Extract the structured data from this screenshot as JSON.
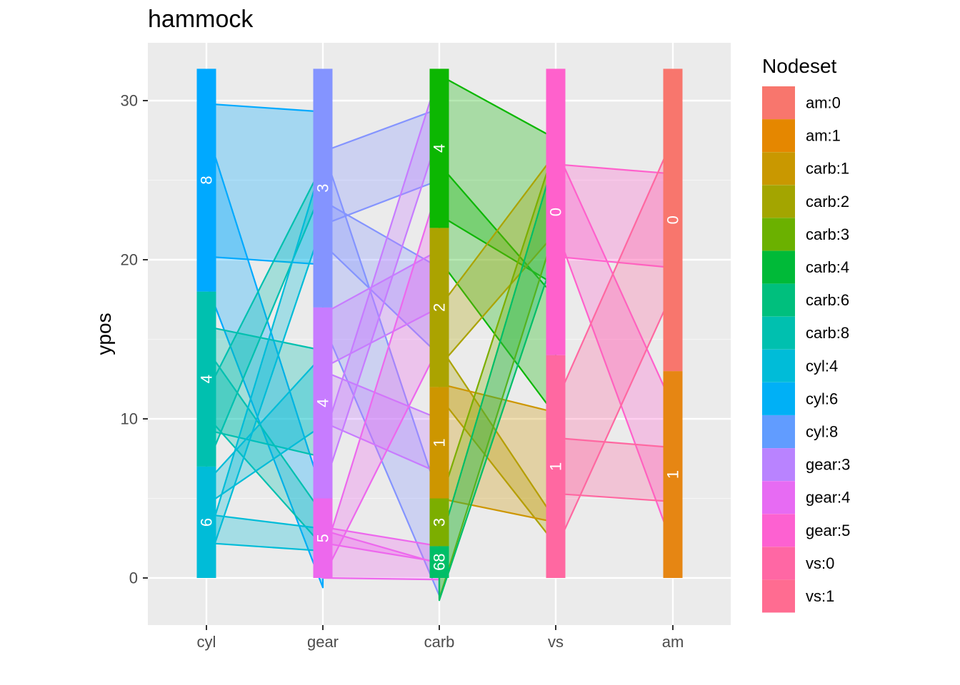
{
  "chart_data": {
    "type": "hammock",
    "title": "hammock",
    "xlabel": "",
    "ylabel": "ypos",
    "x_categories": [
      "cyl",
      "gear",
      "carb",
      "vs",
      "am"
    ],
    "ylim": [
      -3,
      33.5
    ],
    "y_ticks": [
      0,
      10,
      20,
      30
    ],
    "legend": {
      "title": "Nodeset",
      "placement": "right",
      "items": [
        {
          "label": "am:0",
          "color": "#F8766D"
        },
        {
          "label": "am:1",
          "color": "#E58700"
        },
        {
          "label": "carb:1",
          "color": "#C99800"
        },
        {
          "label": "carb:2",
          "color": "#A3A500"
        },
        {
          "label": "carb:3",
          "color": "#6BB100"
        },
        {
          "label": "carb:4",
          "color": "#00BA38"
        },
        {
          "label": "carb:6",
          "color": "#00BF7D"
        },
        {
          "label": "carb:8",
          "color": "#00C0AF"
        },
        {
          "label": "cyl:4",
          "color": "#00BCD8"
        },
        {
          "label": "cyl:6",
          "color": "#00B0F6"
        },
        {
          "label": "cyl:8",
          "color": "#619CFF"
        },
        {
          "label": "gear:3",
          "color": "#B983FF"
        },
        {
          "label": "gear:4",
          "color": "#E76BF3"
        },
        {
          "label": "gear:5",
          "color": "#FD61D1"
        },
        {
          "label": "vs:0",
          "color": "#FF67A4"
        },
        {
          "label": "vs:1",
          "color": "#FF6C91"
        }
      ]
    },
    "nodes": [
      {
        "axis": "cyl",
        "label": "6",
        "count": 7,
        "color": "#00BCD8"
      },
      {
        "axis": "cyl",
        "label": "4",
        "count": 11,
        "color": "#00C0AF"
      },
      {
        "axis": "cyl",
        "label": "8",
        "count": 14,
        "color": "#00A9FF"
      },
      {
        "axis": "gear",
        "label": "5",
        "count": 5,
        "color": "#ED68ED"
      },
      {
        "axis": "gear",
        "label": "4",
        "count": 12,
        "color": "#C77CFF"
      },
      {
        "axis": "gear",
        "label": "3",
        "count": 15,
        "color": "#8494FF"
      },
      {
        "axis": "carb",
        "label": "68",
        "count": 2,
        "color": "#00BE67"
      },
      {
        "axis": "carb",
        "label": "3",
        "count": 3,
        "color": "#7CAE00"
      },
      {
        "axis": "carb",
        "label": "1",
        "count": 7,
        "color": "#CD9600"
      },
      {
        "axis": "carb",
        "label": "2",
        "count": 10,
        "color": "#ABA300"
      },
      {
        "axis": "carb",
        "label": "4",
        "count": 10,
        "color": "#0CB702"
      },
      {
        "axis": "vs",
        "label": "1",
        "count": 14,
        "color": "#FF68A1"
      },
      {
        "axis": "vs",
        "label": "0",
        "count": 18,
        "color": "#FF61CC"
      },
      {
        "axis": "am",
        "label": "1",
        "count": 13,
        "color": "#E68613"
      },
      {
        "axis": "am",
        "label": "0",
        "count": 19,
        "color": "#F8766D"
      }
    ],
    "ribbons": [
      {
        "from": "cyl",
        "to": "gear",
        "color": "#00A9FF",
        "y1": [
          20.2,
          29.8
        ],
        "y2": [
          19.7,
          29.3
        ]
      },
      {
        "from": "cyl",
        "to": "gear",
        "color": "#00A9FF",
        "y1": [
          18.5,
          28.2
        ],
        "y2": [
          -0.6,
          5.2
        ]
      },
      {
        "from": "cyl",
        "to": "gear",
        "color": "#00C0AF",
        "y1": [
          9.3,
          15.8
        ],
        "y2": [
          7.6,
          14.3
        ]
      },
      {
        "from": "cyl",
        "to": "gear",
        "color": "#00C0AF",
        "y1": [
          10.2,
          14.4
        ],
        "y2": [
          2.0,
          4.0
        ]
      },
      {
        "from": "cyl",
        "to": "gear",
        "color": "#00C0AF",
        "y1": [
          7.0,
          11.6
        ],
        "y2": [
          24.5,
          26.0
        ]
      },
      {
        "from": "cyl",
        "to": "gear",
        "color": "#00BCD8",
        "y1": [
          2.2,
          4.0
        ],
        "y2": [
          1.7,
          3.1
        ]
      },
      {
        "from": "cyl",
        "to": "gear",
        "color": "#00BCD8",
        "y1": [
          4.6,
          6.0
        ],
        "y2": [
          9.6,
          14.0
        ]
      },
      {
        "from": "cyl",
        "to": "gear",
        "color": "#00BCD8",
        "y1": [
          0.6,
          2.1
        ],
        "y2": [
          22.3,
          26.2
        ]
      },
      {
        "from": "gear",
        "to": "carb",
        "color": "#8494FF",
        "y1": [
          22.2,
          26.8
        ],
        "y2": [
          25.0,
          29.5
        ]
      },
      {
        "from": "gear",
        "to": "carb",
        "color": "#8494FF",
        "y1": [
          16.0,
          27.0
        ],
        "y2": [
          -1.1,
          5.0
        ]
      },
      {
        "from": "gear",
        "to": "carb",
        "color": "#8494FF",
        "y1": [
          21.0,
          23.7
        ],
        "y2": [
          14.0,
          19.5
        ]
      },
      {
        "from": "gear",
        "to": "carb",
        "color": "#C77CFF",
        "y1": [
          9.8,
          13.0
        ],
        "y2": [
          6.6,
          10.0
        ]
      },
      {
        "from": "gear",
        "to": "carb",
        "color": "#C77CFF",
        "y1": [
          5.5,
          8.6
        ],
        "y2": [
          28.0,
          31.8
        ]
      },
      {
        "from": "gear",
        "to": "carb",
        "color": "#C77CFF",
        "y1": [
          13.2,
          16.6
        ],
        "y2": [
          17.0,
          20.6
        ]
      },
      {
        "from": "gear",
        "to": "carb",
        "color": "#ED68ED",
        "y1": [
          2.2,
          3.2
        ],
        "y2": [
          1.0,
          2.0
        ]
      },
      {
        "from": "gear",
        "to": "carb",
        "color": "#ED68ED",
        "y1": [
          0.0,
          3.0
        ],
        "y2": [
          -0.1,
          0.9
        ]
      },
      {
        "from": "gear",
        "to": "carb",
        "color": "#ED68ED",
        "y1": [
          0.0,
          1.2
        ],
        "y2": [
          14.6,
          24.8
        ]
      },
      {
        "from": "carb",
        "to": "vs",
        "color": "#0CB702",
        "y1": [
          22.8,
          31.6
        ],
        "y2": [
          18.4,
          27.6
        ]
      },
      {
        "from": "carb",
        "to": "vs",
        "color": "#0CB702",
        "y1": [
          20.0,
          26.0
        ],
        "y2": [
          10.2,
          17.6
        ]
      },
      {
        "from": "carb",
        "to": "vs",
        "color": "#ABA300",
        "y1": [
          13.3,
          17.0
        ],
        "y2": [
          21.7,
          26.7
        ]
      },
      {
        "from": "carb",
        "to": "vs",
        "color": "#ABA300",
        "y1": [
          11.4,
          14.6
        ],
        "y2": [
          2.1,
          3.6
        ]
      },
      {
        "from": "carb",
        "to": "vs",
        "color": "#CD9600",
        "y1": [
          5.0,
          12.2
        ],
        "y2": [
          3.5,
          10.4
        ]
      },
      {
        "from": "carb",
        "to": "vs",
        "color": "#7CAE00",
        "y1": [
          -1.3,
          4.6
        ],
        "y2": [
          22.0,
          27.2
        ]
      },
      {
        "from": "carb",
        "to": "vs",
        "color": "#00BE67",
        "y1": [
          -1.4,
          2.0
        ],
        "y2": [
          20.5,
          26.6
        ]
      },
      {
        "from": "vs",
        "to": "am",
        "color": "#FF61CC",
        "y1": [
          20.2,
          26.0
        ],
        "y2": [
          19.5,
          25.4
        ]
      },
      {
        "from": "vs",
        "to": "am",
        "color": "#FF61CC",
        "y1": [
          22.0,
          27.0
        ],
        "y2": [
          2.0,
          10.8
        ]
      },
      {
        "from": "vs",
        "to": "am",
        "color": "#FF68A1",
        "y1": [
          5.3,
          8.8
        ],
        "y2": [
          4.8,
          8.2
        ]
      },
      {
        "from": "vs",
        "to": "am",
        "color": "#FF68A1",
        "y1": [
          1.8,
          11.0
        ],
        "y2": [
          18.0,
          27.6
        ]
      }
    ]
  }
}
